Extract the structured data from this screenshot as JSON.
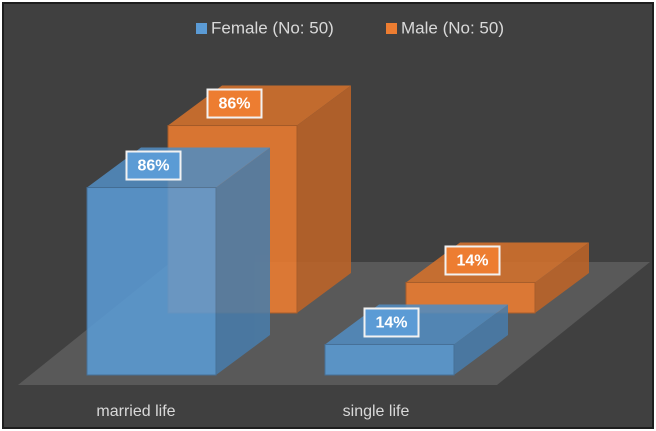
{
  "chart_data": {
    "type": "bar",
    "categories": [
      "married life",
      "single life"
    ],
    "series": [
      {
        "name": "Female (No: 50)",
        "color": "#5b9bd5",
        "values": [
          86,
          14
        ],
        "value_labels": [
          "86%",
          "14%"
        ]
      },
      {
        "name": "Male (No: 50)",
        "color": "#ed7d31",
        "values": [
          86,
          14
        ],
        "value_labels": [
          "86%",
          "14%"
        ]
      }
    ]
  }
}
